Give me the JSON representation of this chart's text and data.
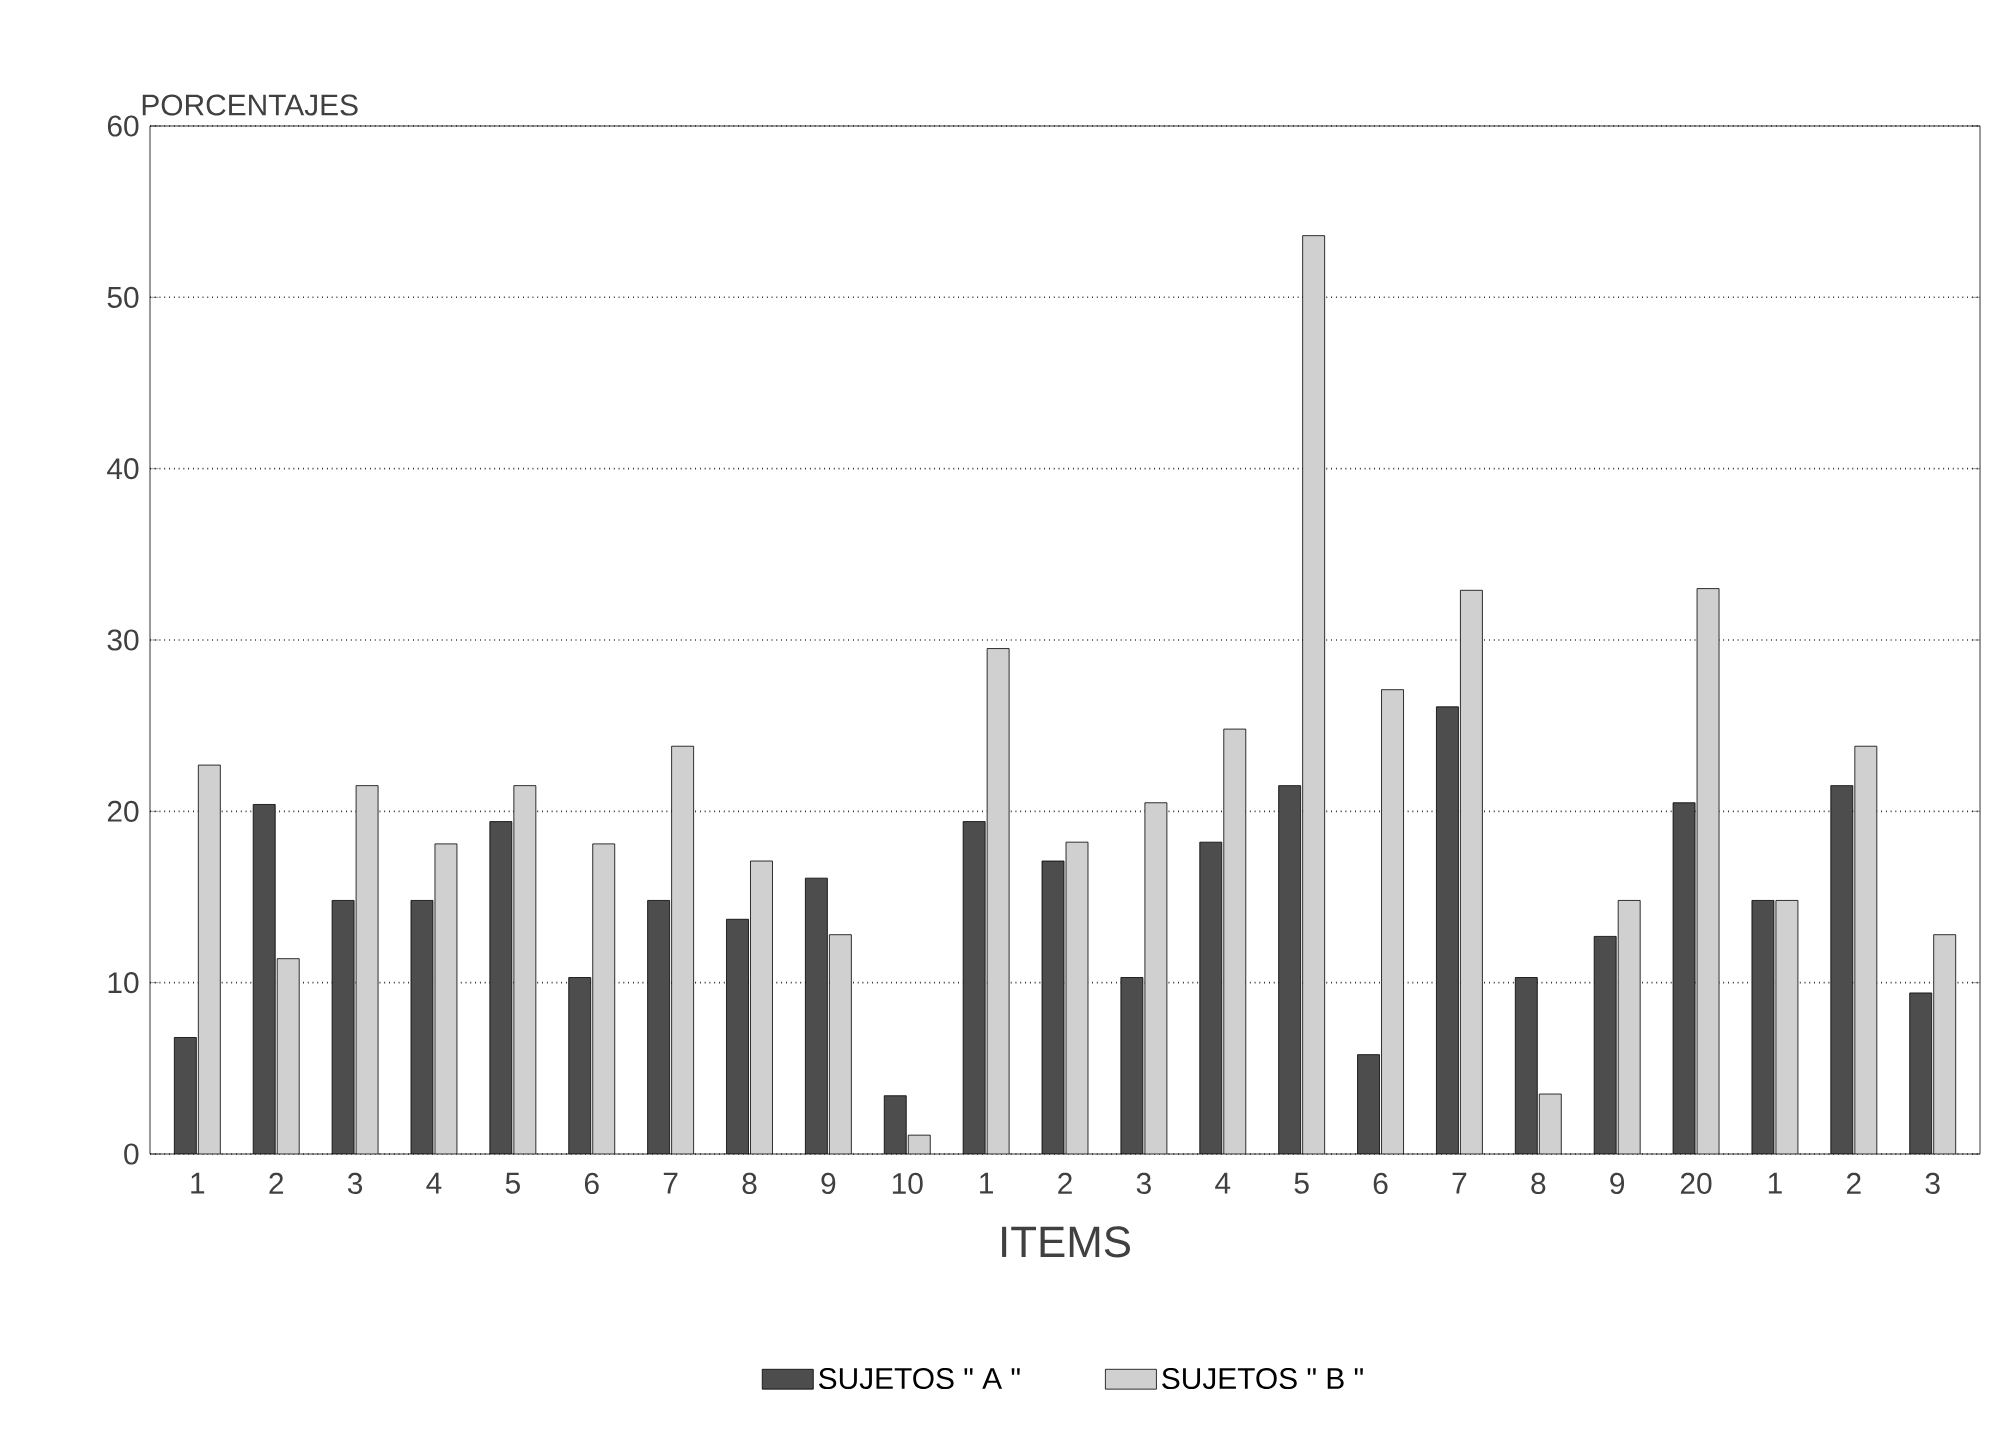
{
  "chart_data": {
    "type": "bar",
    "ylabel": "PORCENTAJES",
    "xlabel": "ITEMS",
    "categories": [
      "1",
      "2",
      "3",
      "4",
      "5",
      "6",
      "7",
      "8",
      "9",
      "10",
      "1",
      "2",
      "3",
      "4",
      "5",
      "6",
      "7",
      "8",
      "9",
      "20",
      "1",
      "2",
      "3"
    ],
    "series": [
      {
        "name": "SUJETOS \" A \"",
        "color": "#4d4d4d",
        "values": [
          6.8,
          20.4,
          14.8,
          14.8,
          19.4,
          10.3,
          14.8,
          13.7,
          16.1,
          3.4,
          19.4,
          17.1,
          10.3,
          18.2,
          21.5,
          5.8,
          26.1,
          10.3,
          12.7,
          20.5,
          14.8,
          21.5,
          9.4
        ]
      },
      {
        "name": "SUJETOS \" B \"",
        "color": "#d0d0d0",
        "values": [
          22.7,
          11.4,
          21.5,
          18.1,
          21.5,
          18.1,
          23.8,
          17.1,
          12.8,
          1.1,
          29.5,
          18.2,
          20.5,
          24.8,
          53.6,
          27.1,
          32.9,
          3.5,
          14.8,
          33.0,
          14.8,
          23.8,
          12.8
        ]
      }
    ],
    "ylim": [
      0,
      60
    ],
    "yticks": [
      0,
      10,
      20,
      30,
      40,
      50,
      60
    ],
    "grid": "y",
    "legend": "bottom"
  }
}
